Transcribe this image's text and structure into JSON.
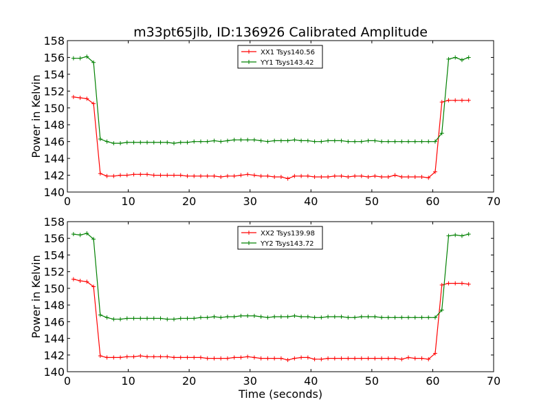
{
  "chart_data": [
    {
      "type": "line",
      "title": "m33pt65jlb, ID:136926 Calibrated Amplitude",
      "xlabel": "",
      "ylabel": "Power in Kelvin",
      "xlim": [
        0,
        70
      ],
      "ylim": [
        140,
        158
      ],
      "xticks": [
        "0",
        "10",
        "20",
        "30",
        "40",
        "50",
        "60",
        "70"
      ],
      "yticks": [
        "140",
        "142",
        "144",
        "146",
        "148",
        "150",
        "152",
        "154",
        "156",
        "158"
      ],
      "legend_position": "top-center",
      "x": [
        1.0,
        2.1,
        3.2,
        4.3,
        5.4,
        6.5,
        7.6,
        8.7,
        9.8,
        10.9,
        12.0,
        13.1,
        14.2,
        15.3,
        16.4,
        17.5,
        18.6,
        19.7,
        20.8,
        21.9,
        23.0,
        24.1,
        25.2,
        26.3,
        27.4,
        28.5,
        29.6,
        30.7,
        31.8,
        32.9,
        34.0,
        35.1,
        36.2,
        37.3,
        38.4,
        39.5,
        40.6,
        41.7,
        42.8,
        43.9,
        45.0,
        46.1,
        47.2,
        48.3,
        49.4,
        50.5,
        51.6,
        52.7,
        53.8,
        54.9,
        56.0,
        57.1,
        58.2,
        59.3,
        60.4,
        61.5,
        62.6,
        63.7,
        64.8,
        65.9
      ],
      "series": [
        {
          "name": "XX1 Tsys140.56",
          "color": "#ff0000",
          "values": [
            151.3,
            151.2,
            151.1,
            150.5,
            142.2,
            141.9,
            141.9,
            142.0,
            142.0,
            142.1,
            142.1,
            142.1,
            142.0,
            142.0,
            142.0,
            142.0,
            142.0,
            141.9,
            141.9,
            141.9,
            141.9,
            141.9,
            141.8,
            141.9,
            141.9,
            142.0,
            142.1,
            142.0,
            141.9,
            141.9,
            141.8,
            141.8,
            141.6,
            141.9,
            141.9,
            141.9,
            141.8,
            141.8,
            141.8,
            141.9,
            141.9,
            141.8,
            141.9,
            141.9,
            141.8,
            141.9,
            141.8,
            141.8,
            142.0,
            141.8,
            141.8,
            141.8,
            141.8,
            141.7,
            142.4,
            150.7,
            150.9,
            150.9,
            150.9,
            150.9
          ]
        },
        {
          "name": "YY1 Tsys143.42",
          "color": "#008000",
          "values": [
            155.9,
            155.9,
            156.1,
            155.4,
            146.3,
            146.0,
            145.8,
            145.8,
            145.9,
            145.9,
            145.9,
            145.9,
            145.9,
            145.9,
            145.9,
            145.8,
            145.9,
            145.9,
            146.0,
            146.0,
            146.0,
            146.1,
            146.0,
            146.1,
            146.2,
            146.2,
            146.2,
            146.2,
            146.1,
            146.0,
            146.1,
            146.1,
            146.1,
            146.2,
            146.1,
            146.1,
            146.0,
            146.0,
            146.1,
            146.1,
            146.1,
            146.0,
            146.0,
            146.0,
            146.1,
            146.1,
            146.0,
            146.0,
            146.0,
            146.0,
            146.0,
            146.0,
            146.0,
            146.0,
            146.0,
            147.0,
            155.8,
            156.0,
            155.7,
            156.0
          ]
        }
      ]
    },
    {
      "type": "line",
      "title": "",
      "xlabel": "Time (seconds)",
      "ylabel": "Power in Kelvin",
      "xlim": [
        0,
        70
      ],
      "ylim": [
        140,
        158
      ],
      "xticks": [
        "0",
        "10",
        "20",
        "30",
        "40",
        "50",
        "60",
        "70"
      ],
      "yticks": [
        "140",
        "142",
        "144",
        "146",
        "148",
        "150",
        "152",
        "154",
        "156",
        "158"
      ],
      "legend_position": "top-center",
      "x": [
        1.0,
        2.1,
        3.2,
        4.3,
        5.4,
        6.5,
        7.6,
        8.7,
        9.8,
        10.9,
        12.0,
        13.1,
        14.2,
        15.3,
        16.4,
        17.5,
        18.6,
        19.7,
        20.8,
        21.9,
        23.0,
        24.1,
        25.2,
        26.3,
        27.4,
        28.5,
        29.6,
        30.7,
        31.8,
        32.9,
        34.0,
        35.1,
        36.2,
        37.3,
        38.4,
        39.5,
        40.6,
        41.7,
        42.8,
        43.9,
        45.0,
        46.1,
        47.2,
        48.3,
        49.4,
        50.5,
        51.6,
        52.7,
        53.8,
        54.9,
        56.0,
        57.1,
        58.2,
        59.3,
        60.4,
        61.5,
        62.6,
        63.7,
        64.8,
        65.9
      ],
      "series": [
        {
          "name": "XX2 Tsys139.98",
          "color": "#ff0000",
          "values": [
            151.1,
            150.9,
            150.8,
            150.2,
            141.9,
            141.7,
            141.7,
            141.7,
            141.8,
            141.8,
            141.9,
            141.8,
            141.8,
            141.8,
            141.8,
            141.7,
            141.7,
            141.7,
            141.7,
            141.7,
            141.6,
            141.6,
            141.6,
            141.6,
            141.7,
            141.7,
            141.8,
            141.7,
            141.6,
            141.6,
            141.6,
            141.6,
            141.4,
            141.6,
            141.7,
            141.7,
            141.5,
            141.5,
            141.6,
            141.6,
            141.6,
            141.6,
            141.6,
            141.6,
            141.6,
            141.6,
            141.6,
            141.6,
            141.6,
            141.5,
            141.7,
            141.6,
            141.6,
            141.5,
            142.2,
            150.4,
            150.6,
            150.6,
            150.6,
            150.5
          ]
        },
        {
          "name": "YY2 Tsys143.72",
          "color": "#008000",
          "values": [
            156.5,
            156.4,
            156.6,
            155.9,
            146.8,
            146.5,
            146.3,
            146.3,
            146.4,
            146.4,
            146.4,
            146.4,
            146.4,
            146.4,
            146.3,
            146.3,
            146.4,
            146.4,
            146.4,
            146.5,
            146.5,
            146.6,
            146.5,
            146.6,
            146.6,
            146.7,
            146.7,
            146.7,
            146.6,
            146.5,
            146.6,
            146.6,
            146.6,
            146.7,
            146.6,
            146.6,
            146.5,
            146.5,
            146.6,
            146.6,
            146.6,
            146.5,
            146.5,
            146.6,
            146.6,
            146.6,
            146.5,
            146.5,
            146.5,
            146.5,
            146.5,
            146.5,
            146.5,
            146.5,
            146.5,
            147.4,
            156.3,
            156.4,
            156.3,
            156.5
          ]
        }
      ]
    }
  ]
}
